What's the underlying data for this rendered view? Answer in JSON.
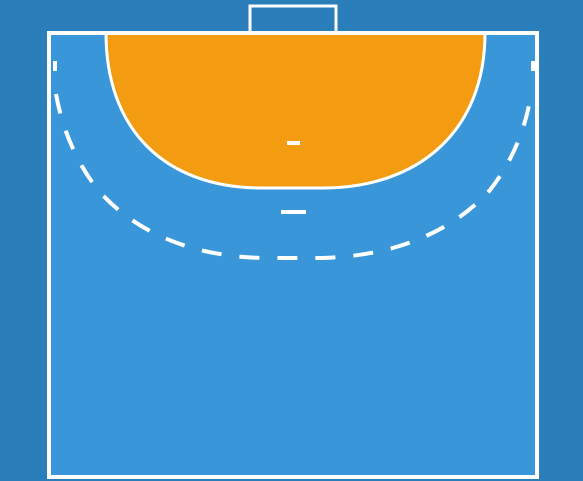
{
  "court": {
    "type": "handball-half-court",
    "colors": {
      "outer_background": "#2a7fba",
      "court_surface": "#3896d9",
      "goal_area": "#f39c12",
      "lines": "#ffffff"
    },
    "markings": [
      "goal",
      "goal-area-line",
      "free-throw-line",
      "goalkeeper-restraining-line",
      "seven-meter-line",
      "side-lines",
      "center-line"
    ]
  }
}
